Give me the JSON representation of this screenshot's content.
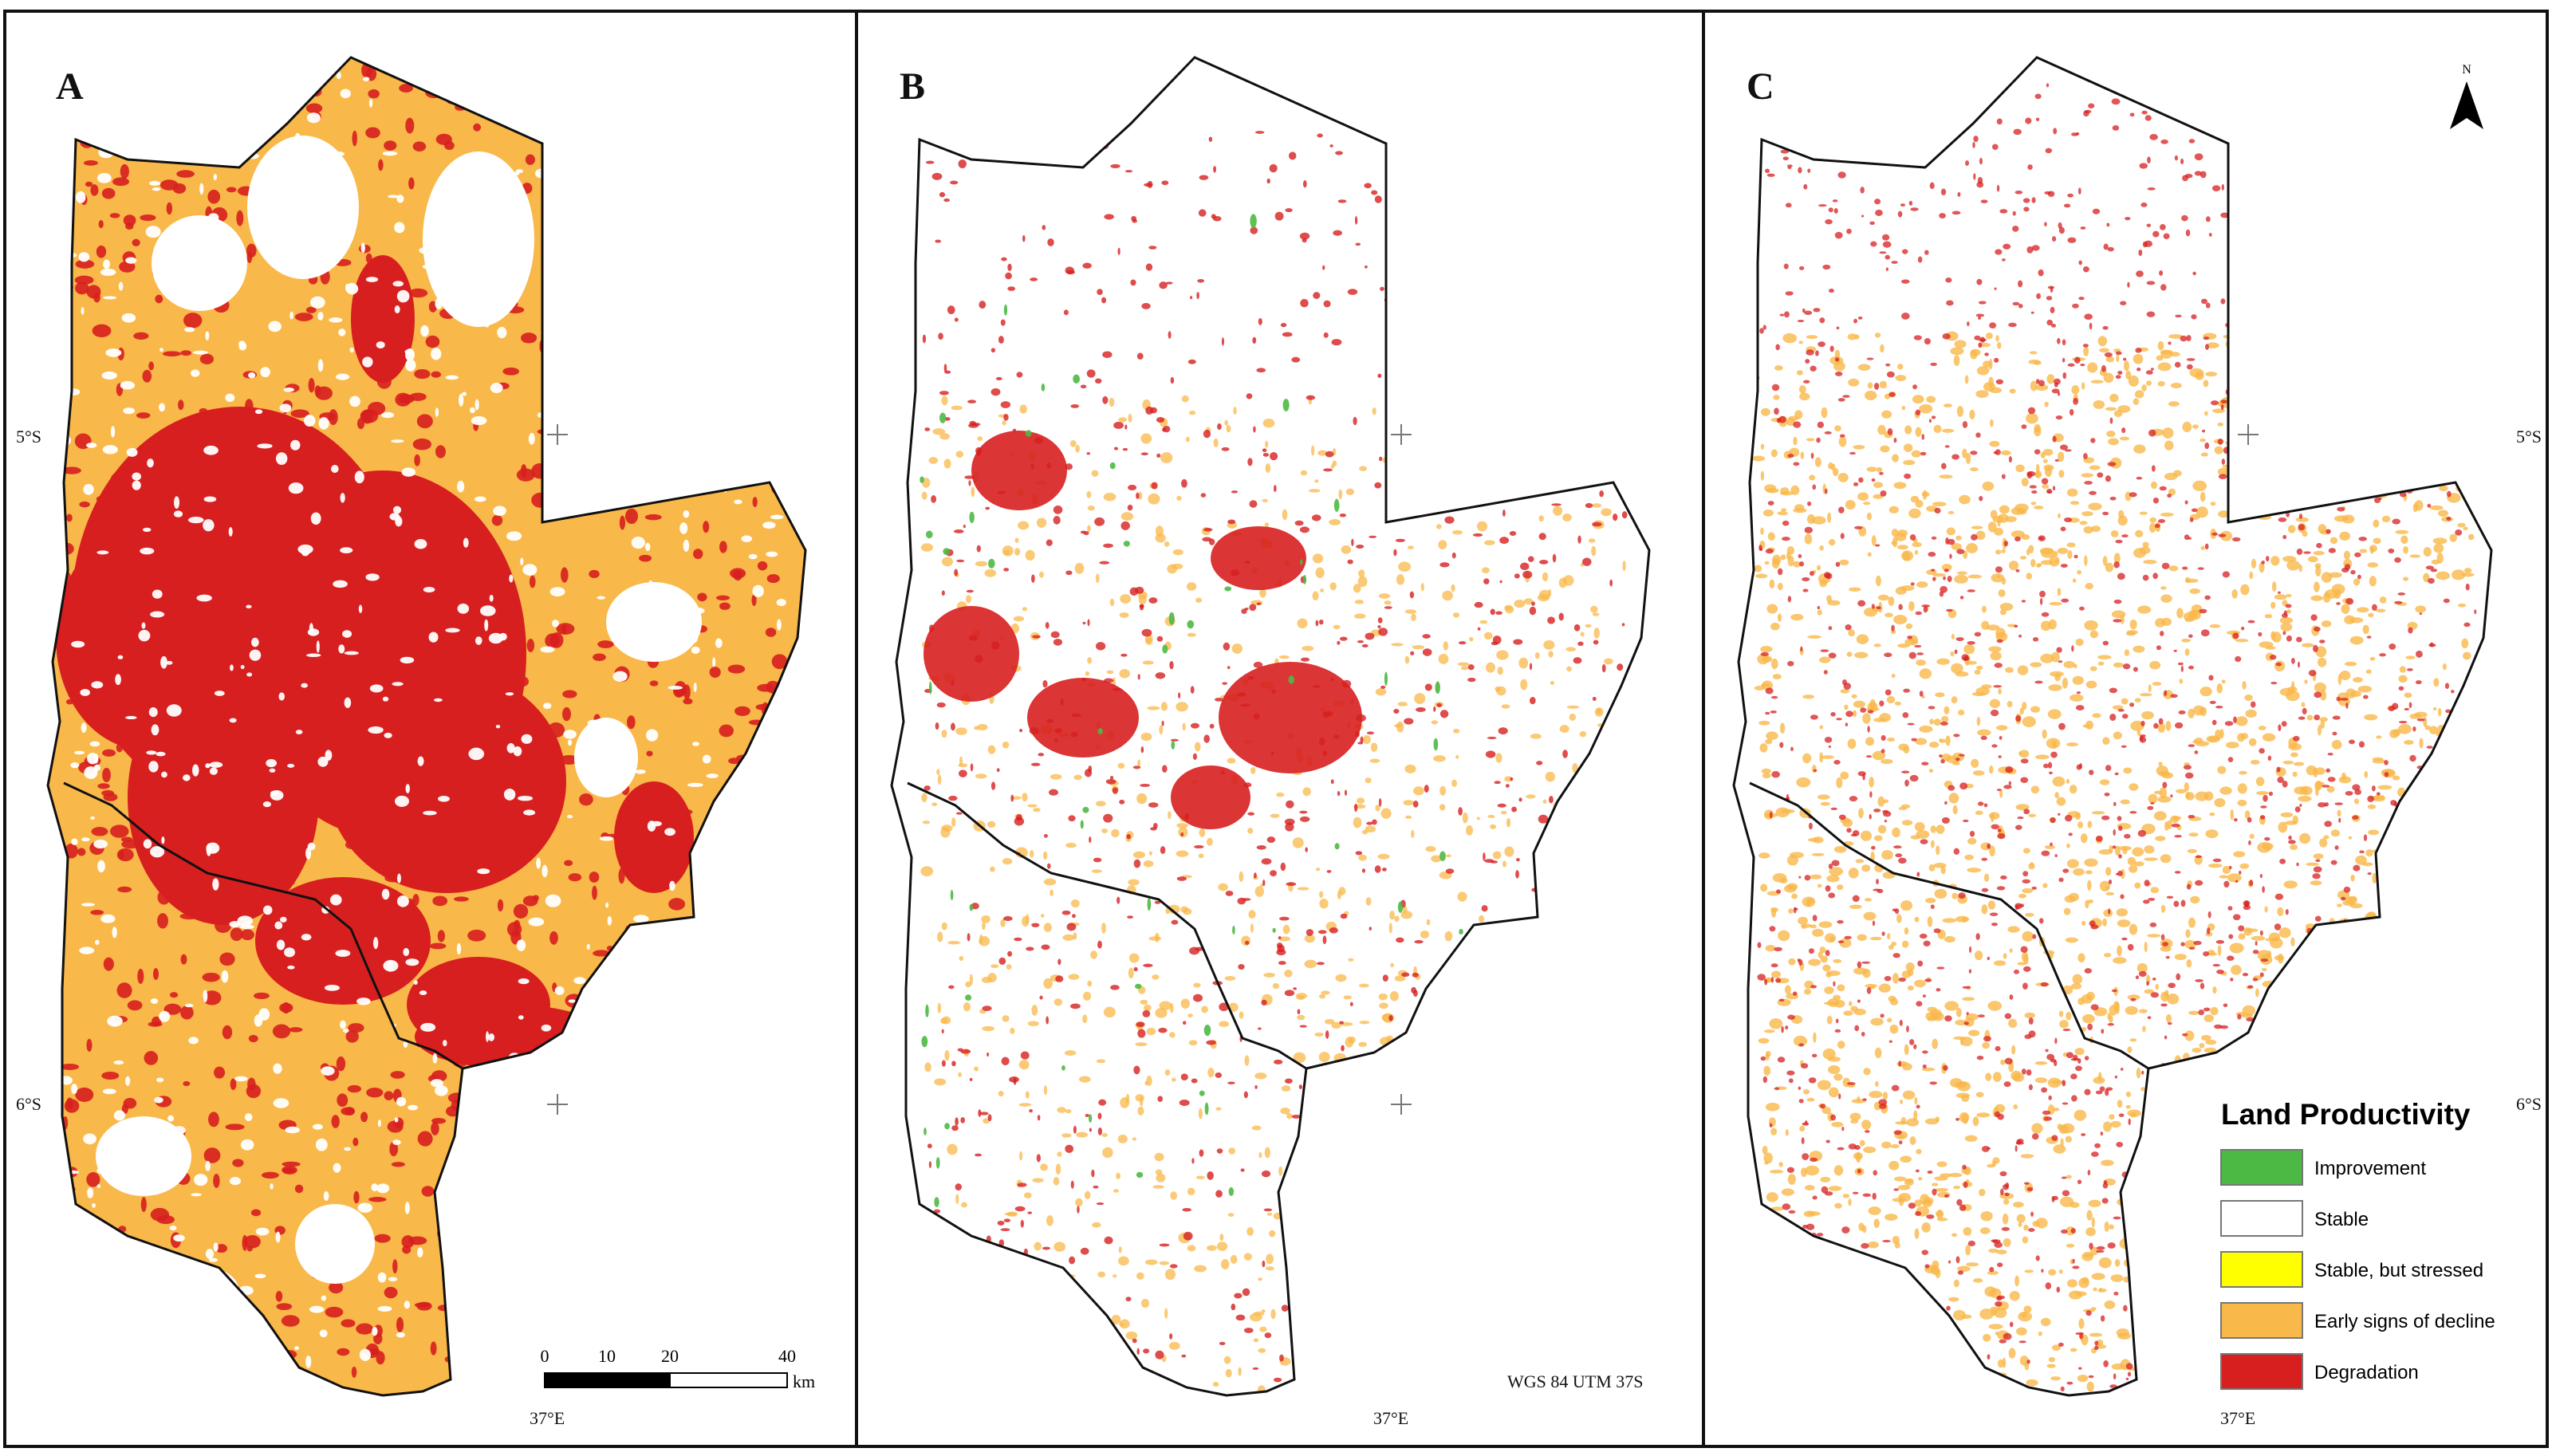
{
  "panels": [
    {
      "letter": "A",
      "lat_top": "5°S",
      "lat_bottom": "6°S",
      "lon": "37°E",
      "theme": "decline"
    },
    {
      "letter": "B",
      "lat_top": "",
      "lat_bottom": "",
      "lon": "37°E",
      "theme": "mixed"
    },
    {
      "letter": "C",
      "lat_top": "5°S",
      "lat_bottom": "6°S",
      "lon": "37°E",
      "theme": "speckled"
    }
  ],
  "scale_bar": {
    "ticks": [
      "0",
      "10",
      "20",
      "40"
    ],
    "unit": "km"
  },
  "projection": "WGS 84 UTM 37S",
  "north_arrow": {
    "label": "N",
    "icon": "north-arrow-icon"
  },
  "legend": {
    "title": "Land Productivity",
    "items": [
      {
        "label": "Improvement",
        "color": "#4cb944"
      },
      {
        "label": "Stable",
        "color": "#ffffff"
      },
      {
        "label": "Stable, but stressed",
        "color": "#ffff00"
      },
      {
        "label": "Early signs of decline",
        "color": "#f9b84a"
      },
      {
        "label": "Degradation",
        "color": "#d71f1f"
      }
    ]
  },
  "colors": {
    "orange": "#f9b84a",
    "red": "#d71f1f",
    "green": "#4cb944",
    "frame": "#111111"
  }
}
